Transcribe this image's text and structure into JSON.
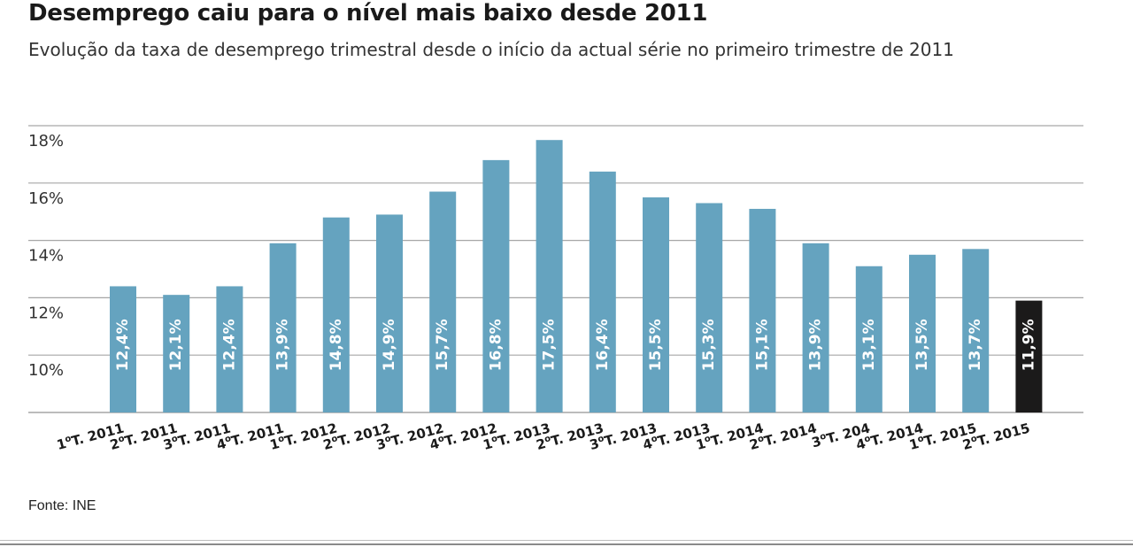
{
  "colors": {
    "bar": "#65a3bf",
    "highlight": "#1b1a1a",
    "gridline": "#a6a6a6",
    "data_label": "#ffffff"
  },
  "source_label": "Fonte: INE",
  "chart_data": {
    "type": "bar",
    "title": "Desemprego caiu para o nível mais baixo desde 2011",
    "subtitle": "Evolução da taxa de desemprego trimestral desde o início da actual série no primeiro trimestre de 2011",
    "xlabel": "",
    "ylabel": "",
    "ylim": [
      8,
      18
    ],
    "yticks": [
      10,
      12,
      14,
      16,
      18
    ],
    "ytick_labels": [
      "10%",
      "12%",
      "14%",
      "16%",
      "18%"
    ],
    "grid": true,
    "categories": [
      {
        "num": "1",
        "sup": "o",
        "rest": "T. 2011"
      },
      {
        "num": "2",
        "sup": "o",
        "rest": "T. 2011"
      },
      {
        "num": "3",
        "sup": "o",
        "rest": "T. 2011"
      },
      {
        "num": "4",
        "sup": "o",
        "rest": "T. 2011"
      },
      {
        "num": "1",
        "sup": "o",
        "rest": "T. 2012"
      },
      {
        "num": "2",
        "sup": "o",
        "rest": "T. 2012"
      },
      {
        "num": "3",
        "sup": "o",
        "rest": "T. 2012"
      },
      {
        "num": "4",
        "sup": "o",
        "rest": "T. 2012"
      },
      {
        "num": "1",
        "sup": "o",
        "rest": "T. 2013"
      },
      {
        "num": "2",
        "sup": "o",
        "rest": "T. 2013"
      },
      {
        "num": "3",
        "sup": "o",
        "rest": "T. 2013"
      },
      {
        "num": "4",
        "sup": "o",
        "rest": "T. 2013"
      },
      {
        "num": "1",
        "sup": "o",
        "rest": "T. 2014"
      },
      {
        "num": "2",
        "sup": "o",
        "rest": "T. 2014"
      },
      {
        "num": "3",
        "sup": "o",
        "rest": "T. 204"
      },
      {
        "num": "4",
        "sup": "o",
        "rest": "T. 2014"
      },
      {
        "num": "1",
        "sup": "o",
        "rest": "T. 2015"
      },
      {
        "num": "2",
        "sup": "o",
        "rest": "T. 2015"
      }
    ],
    "values": [
      12.4,
      12.1,
      12.4,
      13.9,
      14.8,
      14.9,
      15.7,
      16.8,
      17.5,
      16.4,
      15.5,
      15.3,
      15.1,
      13.9,
      13.1,
      13.5,
      13.7,
      11.9
    ],
    "value_labels": [
      "12,4%",
      "12,1%",
      "12,4%",
      "13,9%",
      "14,8%",
      "14,9%",
      "15,7%",
      "16,8%",
      "17,5%",
      "16,4%",
      "15,5%",
      "15,3%",
      "15,1%",
      "13,9%",
      "13,1%",
      "13,5%",
      "13,7%",
      "11,9%"
    ],
    "highlight_index": 17
  }
}
